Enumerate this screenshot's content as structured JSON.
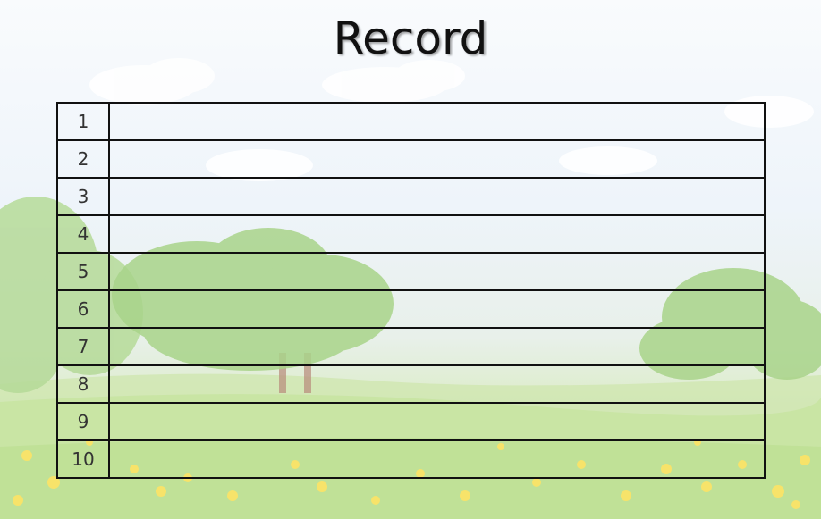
{
  "title": "Record",
  "rows": [
    {
      "rank": "1",
      "value": ""
    },
    {
      "rank": "2",
      "value": ""
    },
    {
      "rank": "3",
      "value": ""
    },
    {
      "rank": "4",
      "value": ""
    },
    {
      "rank": "5",
      "value": ""
    },
    {
      "rank": "6",
      "value": ""
    },
    {
      "rank": "7",
      "value": ""
    },
    {
      "rank": "8",
      "value": ""
    },
    {
      "rank": "9",
      "value": ""
    },
    {
      "rank": "10",
      "value": ""
    }
  ],
  "colors": {
    "border": "#111111",
    "sky": "#eef4fa",
    "grass": "#d4e9b6",
    "tree": "#a9d48a",
    "flower": "#f7e36a"
  }
}
